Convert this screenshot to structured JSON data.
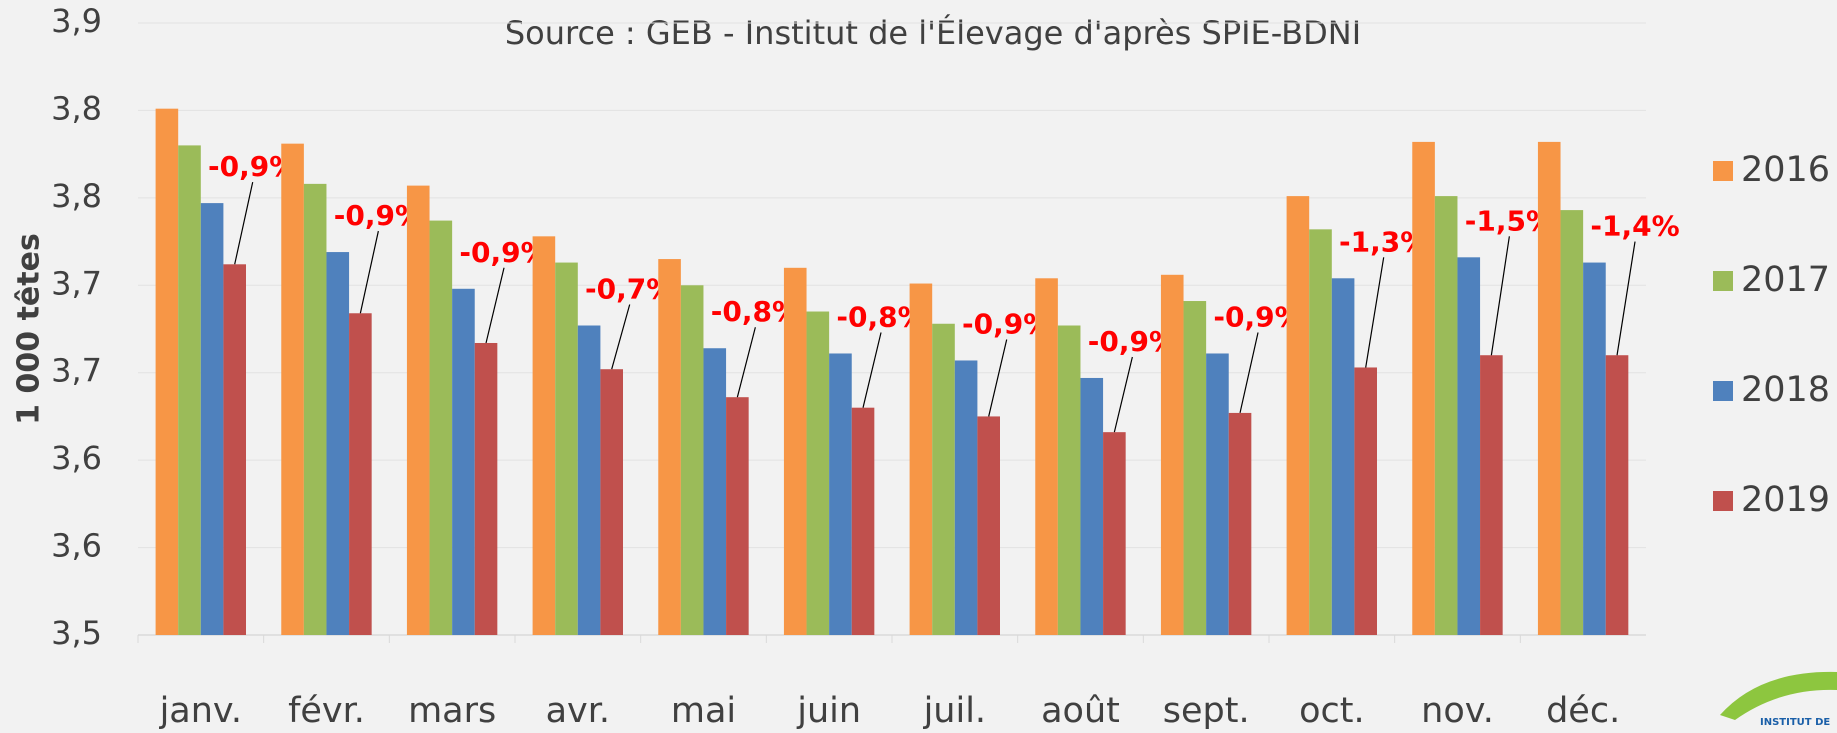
{
  "chart_data": {
    "type": "bar",
    "title": "Source : GEB - Institut de l'Élevage d'après SPIE-BDNI",
    "ylabel": "1 000 têtes",
    "categories": [
      "janv.",
      "févr.",
      "mars",
      "avr.",
      "mai",
      "juin",
      "juil.",
      "août",
      "sept.",
      "oct.",
      "nov.",
      "déc."
    ],
    "series": [
      {
        "name": "2016",
        "color": "#f79646",
        "values": [
          3.851,
          3.831,
          3.807,
          3.778,
          3.765,
          3.76,
          3.751,
          3.754,
          3.756,
          3.801,
          3.832,
          3.832
        ]
      },
      {
        "name": "2017",
        "color": "#9bbb59",
        "values": [
          3.83,
          3.808,
          3.787,
          3.763,
          3.75,
          3.735,
          3.728,
          3.727,
          3.741,
          3.782,
          3.801,
          3.793
        ]
      },
      {
        "name": "2018",
        "color": "#4f81bd",
        "values": [
          3.797,
          3.769,
          3.748,
          3.727,
          3.714,
          3.711,
          3.707,
          3.697,
          3.711,
          3.754,
          3.766,
          3.763
        ]
      },
      {
        "name": "2019",
        "color": "#c0504d",
        "values": [
          3.762,
          3.734,
          3.717,
          3.702,
          3.686,
          3.68,
          3.675,
          3.666,
          3.677,
          3.703,
          3.71,
          3.71
        ]
      }
    ],
    "annotations": [
      "-0,9%",
      "-0,9%",
      "-0,9%",
      "-0,7%",
      "-0,8%",
      "-0,8%",
      "-0,9%",
      "-0,9%",
      "-0,9%",
      "-1,3%",
      "-1,5%",
      "-1,4%"
    ],
    "annotation_color": "#ff0000",
    "ylim": [
      3.55,
      3.9
    ],
    "yticks": [
      {
        "value": 3.55,
        "label": "3,5"
      },
      {
        "value": 3.6,
        "label": "3,6"
      },
      {
        "value": 3.65,
        "label": "3,6"
      },
      {
        "value": 3.7,
        "label": "3,7"
      },
      {
        "value": 3.75,
        "label": "3,7"
      },
      {
        "value": 3.8,
        "label": "3,8"
      },
      {
        "value": 3.85,
        "label": "3,8"
      },
      {
        "value": 3.9,
        "label": "3,9"
      }
    ],
    "grid": true,
    "legend": "right"
  }
}
